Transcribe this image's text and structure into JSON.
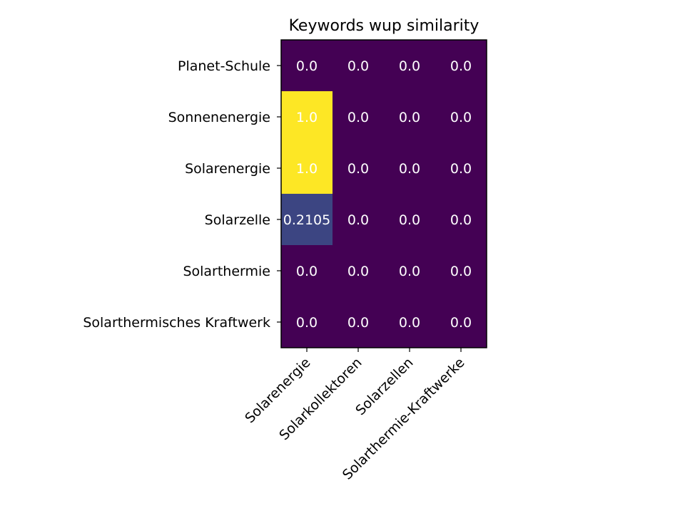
{
  "chart_data": {
    "type": "heatmap",
    "title": "Keywords wup similarity",
    "rows": [
      "Planet-Schule",
      "Sonnenenergie",
      "Solarenergie",
      "Solarzelle",
      "Solarthermie",
      "Solarthermisches Kraftwerk"
    ],
    "columns": [
      "Solarenergie",
      "Solarkollektoren",
      "Solarzellen",
      "Solarthermie-Kraftwerke"
    ],
    "values": [
      [
        0.0,
        0.0,
        0.0,
        0.0
      ],
      [
        1.0,
        0.0,
        0.0,
        0.0
      ],
      [
        1.0,
        0.0,
        0.0,
        0.0
      ],
      [
        0.2105,
        0.0,
        0.0,
        0.0
      ],
      [
        0.0,
        0.0,
        0.0,
        0.0
      ],
      [
        0.0,
        0.0,
        0.0,
        0.0
      ]
    ],
    "cell_labels": [
      [
        "0.0",
        "0.0",
        "0.0",
        "0.0"
      ],
      [
        "1.0",
        "0.0",
        "0.0",
        "0.0"
      ],
      [
        "1.0",
        "0.0",
        "0.0",
        "0.0"
      ],
      [
        "0.2105",
        "0.0",
        "0.0",
        "0.0"
      ],
      [
        "0.0",
        "0.0",
        "0.0",
        "0.0"
      ],
      [
        "0.0",
        "0.0",
        "0.0",
        "0.0"
      ]
    ],
    "value_range": [
      0.0,
      1.0
    ],
    "colormap": "viridis",
    "grid": false
  }
}
